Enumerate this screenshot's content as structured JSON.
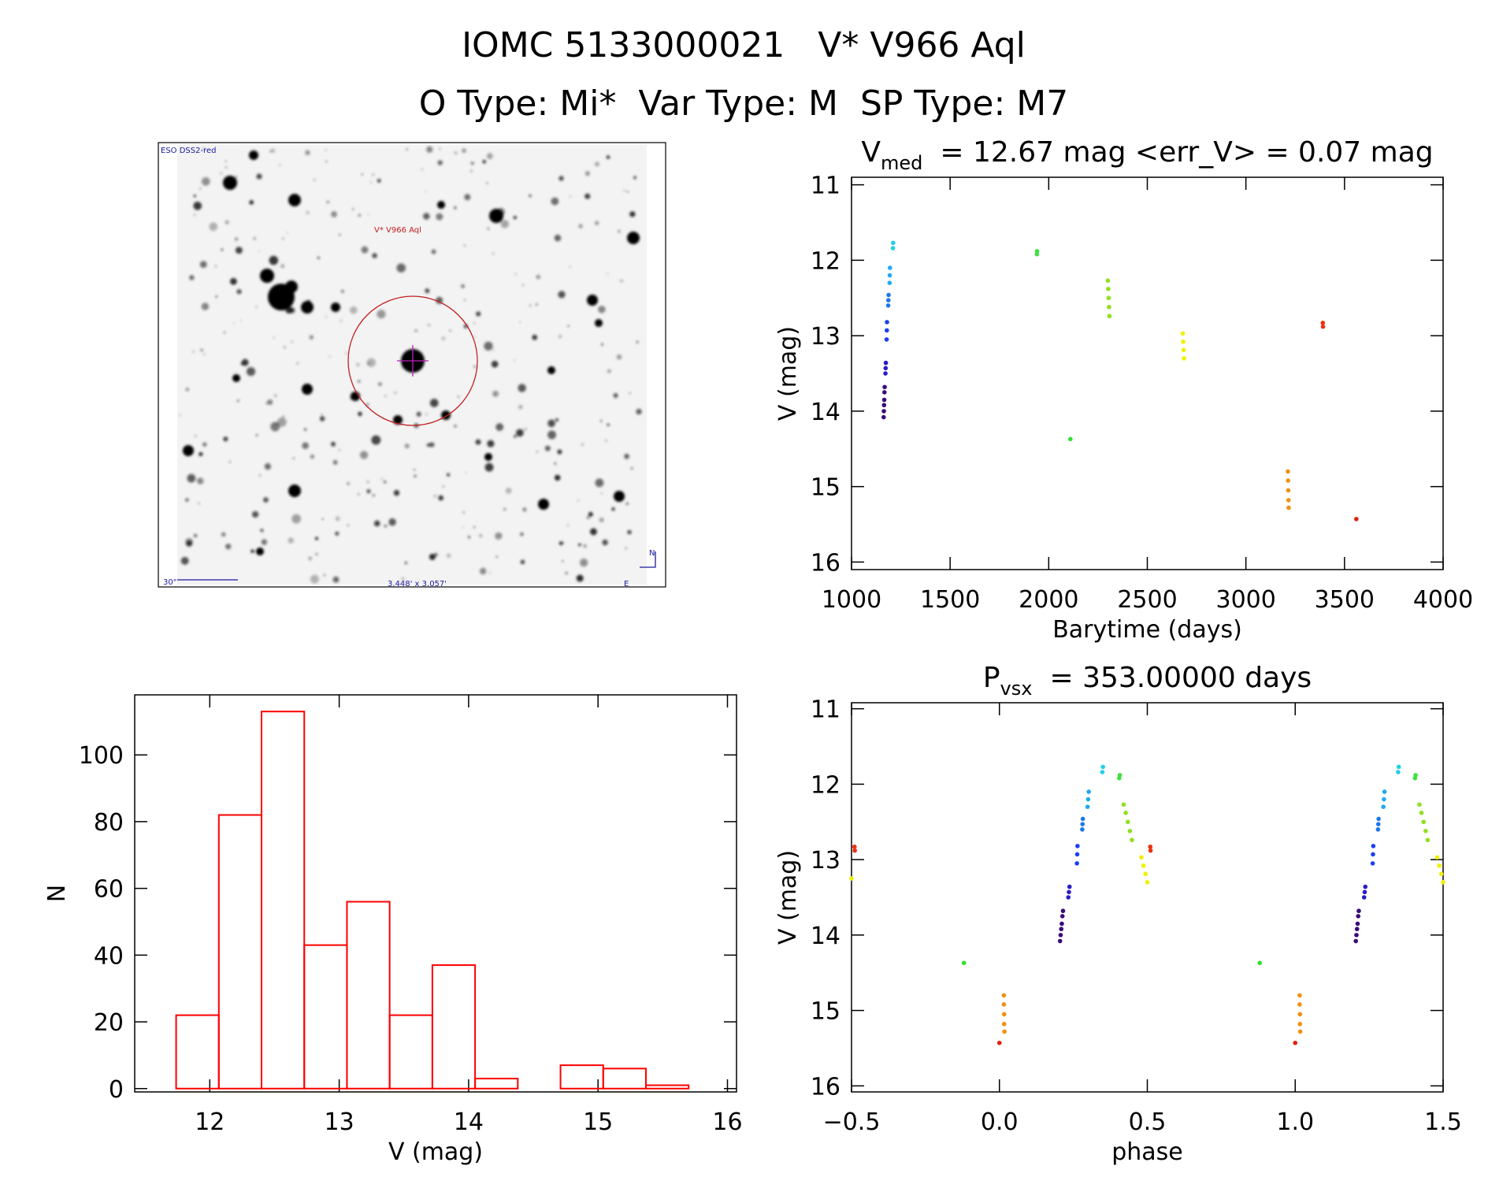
{
  "header": {
    "title": "IOMC 5133000021   V* V966 Aql",
    "subtitle": "O Type: Mi*  Var Type: M  SP Type: M7"
  },
  "finder": {
    "survey": "ESO DSS2-red",
    "target": "V* V966 Aql",
    "scale": "30\"",
    "field": "3.448' x 3.057'",
    "north": "N",
    "east": "E"
  },
  "chart_data": [
    {
      "type": "scatter",
      "title": {
        "main": "V",
        "sub": "med",
        "rest": "= 12.67 mag <err_V> = 0.07 mag"
      },
      "x_label": "Barytime (days)",
      "y_label": "V (mag)",
      "xlim": [
        1000,
        4000
      ],
      "ylim": [
        16.1,
        10.9
      ],
      "xticks": [
        1000,
        1500,
        2000,
        2500,
        3000,
        3500,
        4000
      ],
      "yticks": [
        11,
        12,
        13,
        14,
        15,
        16
      ],
      "series": [
        {
          "color": "#3a0a78",
          "x": [
            1163,
            1164,
            1165,
            1166,
            1167,
            1168
          ],
          "values": [
            14.08,
            14.0,
            13.92,
            13.85,
            13.75,
            13.68
          ]
        },
        {
          "color": "#2a1cc8",
          "x": [
            1172,
            1173,
            1174
          ],
          "values": [
            13.5,
            13.43,
            13.36
          ]
        },
        {
          "color": "#1a40f0",
          "x": [
            1178,
            1179,
            1180
          ],
          "values": [
            13.05,
            12.93,
            12.82
          ]
        },
        {
          "color": "#1e78e8",
          "x": [
            1186,
            1187,
            1188
          ],
          "values": [
            12.6,
            12.53,
            12.46
          ]
        },
        {
          "color": "#22a8f0",
          "x": [
            1193,
            1194,
            1195
          ],
          "values": [
            12.3,
            12.2,
            12.1
          ]
        },
        {
          "color": "#20d0e8",
          "x": [
            1210,
            1211
          ],
          "values": [
            11.84,
            11.77
          ]
        },
        {
          "color": "#40e040",
          "x": [
            1940,
            1941
          ],
          "values": [
            11.92,
            11.88
          ]
        },
        {
          "color": "#30e030",
          "x": [
            2110
          ],
          "values": [
            14.37
          ]
        },
        {
          "color": "#90e020",
          "x": [
            2300,
            2302,
            2304,
            2306,
            2308
          ],
          "values": [
            12.27,
            12.38,
            12.5,
            12.62,
            12.74
          ]
        },
        {
          "color": "#f0f000",
          "x": [
            2680,
            2682,
            2684,
            2686
          ],
          "values": [
            12.97,
            13.08,
            13.19,
            13.3
          ]
        },
        {
          "color": "#f09010",
          "x": [
            3213,
            3214,
            3215,
            3216,
            3217
          ],
          "values": [
            14.8,
            14.92,
            15.05,
            15.18,
            15.28
          ]
        },
        {
          "color": "#f03010",
          "x": [
            3390,
            3391
          ],
          "values": [
            12.83,
            12.88
          ]
        },
        {
          "color": "#e02010",
          "x": [
            3560
          ],
          "values": [
            15.43
          ]
        }
      ]
    },
    {
      "type": "scatter",
      "title": {
        "main": "P",
        "sub": "vsx",
        "rest": "= 353.00000 days"
      },
      "x_label": "phase",
      "y_label": "V (mag)",
      "xlim": [
        -0.5,
        1.5
      ],
      "ylim": [
        16.08,
        10.92
      ],
      "xticks": [
        {
          "value": -0.5,
          "label": "−0.5"
        },
        {
          "value": 0,
          "label": "0.0"
        },
        0.5,
        {
          "value": 1,
          "label": "1.0"
        },
        1.5
      ],
      "yticks": [
        11,
        12,
        13,
        14,
        15,
        16
      ],
      "series": [
        {
          "color": "#3a0a78",
          "x": [
            0.205,
            0.207,
            0.209,
            0.211,
            0.213,
            0.215,
            1.205,
            1.207,
            1.209,
            1.211,
            1.213,
            1.215
          ],
          "values": [
            14.08,
            14.0,
            13.92,
            13.85,
            13.75,
            13.68,
            14.08,
            14.0,
            13.92,
            13.85,
            13.75,
            13.68
          ]
        },
        {
          "color": "#2a1cc8",
          "x": [
            0.233,
            0.235,
            0.237,
            1.233,
            1.235,
            1.237
          ],
          "values": [
            13.5,
            13.43,
            13.36,
            13.5,
            13.43,
            13.36
          ]
        },
        {
          "color": "#1a40f0",
          "x": [
            0.262,
            0.263,
            0.264,
            1.262,
            1.263,
            1.264
          ],
          "values": [
            13.05,
            12.93,
            12.82,
            13.05,
            12.93,
            12.82
          ]
        },
        {
          "color": "#1e78e8",
          "x": [
            0.28,
            0.281,
            0.282,
            1.28,
            1.281,
            1.282
          ],
          "values": [
            12.6,
            12.53,
            12.46,
            12.6,
            12.53,
            12.46
          ]
        },
        {
          "color": "#22a8f0",
          "x": [
            0.298,
            0.3,
            0.302,
            1.298,
            1.3,
            1.302
          ],
          "values": [
            12.3,
            12.2,
            12.1,
            12.3,
            12.2,
            12.1
          ]
        },
        {
          "color": "#20d0e8",
          "x": [
            0.348,
            0.35,
            1.348,
            1.35
          ],
          "values": [
            11.84,
            11.77,
            11.84,
            11.77
          ]
        },
        {
          "color": "#40e040",
          "x": [
            0.405,
            0.407,
            1.405,
            1.407
          ],
          "values": [
            11.92,
            11.88,
            11.92,
            11.88
          ]
        },
        {
          "color": "#30e030",
          "x": [
            -0.12,
            0.88
          ],
          "values": [
            14.37,
            14.37
          ]
        },
        {
          "color": "#90e020",
          "x": [
            0.42,
            0.427,
            0.434,
            0.441,
            0.448,
            1.42,
            1.427,
            1.434,
            1.441,
            1.448
          ],
          "values": [
            12.27,
            12.38,
            12.5,
            12.62,
            12.74,
            12.27,
            12.38,
            12.5,
            12.62,
            12.74
          ]
        },
        {
          "color": "#f0f000",
          "x": [
            0.48,
            0.487,
            0.494,
            0.5,
            -0.5,
            1.48,
            1.487,
            1.494,
            1.5
          ],
          "values": [
            12.97,
            13.08,
            13.19,
            13.3,
            13.25,
            12.97,
            13.08,
            13.19,
            13.3
          ]
        },
        {
          "color": "#f09010",
          "x": [
            0.015,
            0.015,
            0.016,
            0.016,
            0.017,
            1.015,
            1.015,
            1.016,
            1.016,
            1.017
          ],
          "values": [
            14.8,
            14.92,
            15.05,
            15.18,
            15.28,
            14.8,
            14.92,
            15.05,
            15.18,
            15.28
          ]
        },
        {
          "color": "#f03010",
          "x": [
            0.51,
            0.511,
            -0.49,
            -0.489
          ],
          "values": [
            12.83,
            12.88,
            12.83,
            12.88
          ]
        },
        {
          "color": "#e02010",
          "x": [
            0,
            1
          ],
          "values": [
            15.43,
            15.43
          ]
        }
      ]
    },
    {
      "type": "histogram",
      "x_label": "V (mag)",
      "y_label": "N",
      "color": "#ff0000",
      "xlim": [
        11.42,
        16.07
      ],
      "ylim": [
        -1,
        118
      ],
      "xticks": [
        12,
        13,
        14,
        15,
        16
      ],
      "yticks": [
        0,
        20,
        40,
        60,
        80,
        100
      ],
      "bins": [
        11.74,
        12.07,
        12.4,
        12.73,
        13.06,
        13.39,
        13.72,
        14.05,
        14.38,
        14.71,
        15.04,
        15.37,
        15.7
      ],
      "values": [
        22,
        82,
        113,
        43,
        56,
        22,
        37,
        3,
        0,
        7,
        6,
        1
      ]
    }
  ]
}
